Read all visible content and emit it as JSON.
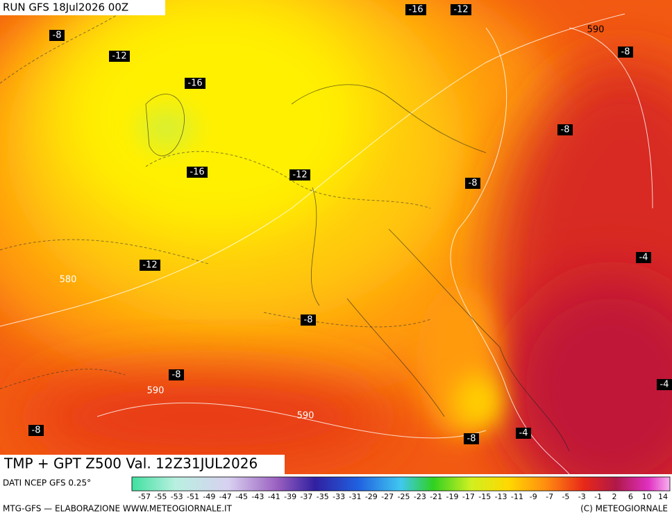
{
  "header": {
    "run": "RUN GFS 18Jul2026 00Z"
  },
  "contour_labels": {
    "temperature": [
      -8,
      -12,
      -16,
      -16,
      -12,
      -8,
      -8,
      -16,
      -12,
      -8,
      -12,
      -4,
      -8,
      -8,
      -4,
      -8,
      -4,
      -8
    ],
    "height": [
      590,
      580,
      590,
      590
    ]
  },
  "footer": {
    "title": "TMP + GPT Z500 Val. 12Z31JUL2026",
    "source": "DATI NCEP GFS 0.25°",
    "credit": "MTG-GFS — ELABORAZIONE WWW.METEOGIORNALE.IT",
    "copyright": "(C) METEOGIORNALE"
  },
  "colorbar": {
    "ticks": [
      -57,
      -55,
      -53,
      -51,
      -49,
      -47,
      -45,
      -43,
      -41,
      -39,
      -37,
      -35,
      -33,
      -31,
      -29,
      -27,
      -25,
      -23,
      -21,
      -19,
      -17,
      -15,
      -13,
      -11,
      -9,
      -7,
      -5,
      -3,
      -1,
      2,
      6,
      10,
      14
    ]
  }
}
